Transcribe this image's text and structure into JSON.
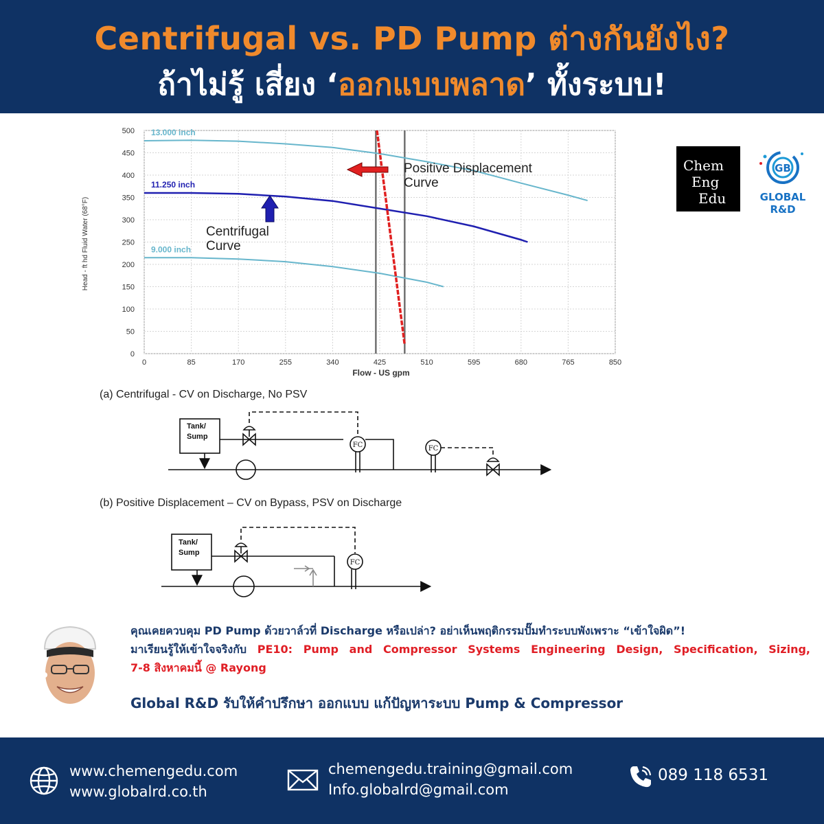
{
  "header": {
    "title_line1": "Centrifugal vs. PD Pump ต่างกันยังไง?",
    "title_line2_pre": "ถ้าไม่รู้ เสี่ยง ‘",
    "title_line2_highlight": "ออกแบบพลาด",
    "title_line2_post": "’ ทั้งระบบ!"
  },
  "logos": {
    "chemengedu": [
      "Chem",
      "Eng",
      "Edu"
    ],
    "globalrd": "GLOBAL R&D"
  },
  "chart_data": {
    "type": "line",
    "xlabel": "Flow - US gpm",
    "ylabel": "Head - ft hd Fluid Water (68°F)",
    "xlim": [
      0,
      850
    ],
    "ylim": [
      0,
      500
    ],
    "xticks": [
      0,
      85,
      170,
      255,
      340,
      425,
      510,
      595,
      680,
      765,
      850
    ],
    "yticks": [
      0,
      50,
      100,
      150,
      200,
      250,
      300,
      350,
      400,
      450,
      500
    ],
    "grid": true,
    "series": [
      {
        "name": "13.000 inch",
        "color": "#67b6cc",
        "x": [
          0,
          85,
          170,
          255,
          340,
          425,
          510,
          595,
          680,
          765,
          800
        ],
        "y": [
          477,
          478,
          476,
          470,
          462,
          448,
          430,
          410,
          382,
          355,
          343
        ]
      },
      {
        "name": "11.250 inch",
        "color": "#1f1fb0",
        "x": [
          0,
          85,
          170,
          255,
          340,
          425,
          510,
          595,
          680,
          692
        ],
        "y": [
          360,
          360,
          358,
          352,
          342,
          325,
          308,
          285,
          255,
          250
        ]
      },
      {
        "name": "9.000 inch",
        "color": "#67b6cc",
        "x": [
          0,
          85,
          170,
          255,
          340,
          425,
          510,
          540
        ],
        "y": [
          215,
          215,
          212,
          206,
          195,
          180,
          160,
          150
        ]
      },
      {
        "name": "",
        "color": "#e02020",
        "x": [
          420,
          470
        ],
        "y": [
          500,
          20
        ]
      }
    ],
    "vlines": [
      {
        "x": 418,
        "color": "#707070"
      },
      {
        "x": 470,
        "color": "#707070"
      }
    ],
    "annotations": {
      "pd": "Positive Displacement Curve",
      "centrifugal": "Centrifugal Curve"
    }
  },
  "diagram": {
    "caption_a": "(a) Centrifugal - CV on Discharge, No PSV",
    "caption_b": "(b) Positive Displacement – CV on Bypass, PSV on Discharge",
    "tank_line1": "Tank/",
    "tank_line2": "Sump",
    "fc": "FC"
  },
  "promo": {
    "line1": "คุณเคยควบคุม PD Pump ด้วยวาล์วที่ Discharge หรือเปล่า? อย่าเห็นพฤติกรรมปั๊มทำระบบพังเพราะ “เข้าใจผิด”!",
    "line2_pre": "มาเรียนรู้ให้เข้าใจจริงกับ ",
    "line2_course": "PE10: Pump and Compressor Systems Engineering Design, Specification, Sizing,",
    "line3": "7-8 สิงหาคมนี้ @ Rayong",
    "global_line": "Global R&D รับให้คำปรึกษา ออกแบบ แก้ปัญหาระบบ Pump & Compressor"
  },
  "footer": {
    "web1": "www.chemengedu.com",
    "web2": "www.globalrd.co.th",
    "email1": "chemengedu.training@gmail.com",
    "email2": "Info.globalrd@gmail.com",
    "phone": "089 118 6531"
  }
}
